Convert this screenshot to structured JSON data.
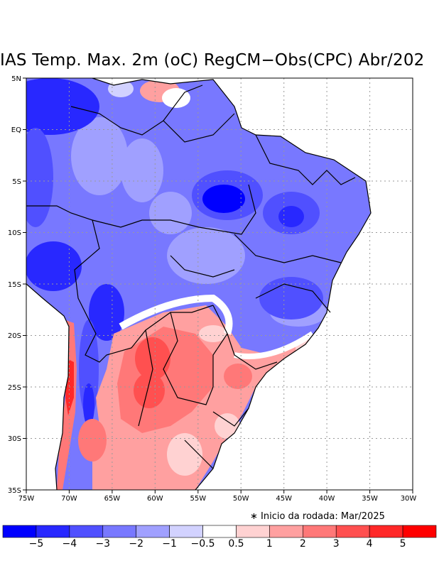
{
  "title": "IAS Temp. Max. 2m (oC) RegCM−Obs(CPC) Abr/202",
  "note": "∗ Inicio da rodada: Mar/2025",
  "lat_labels": [
    "5N",
    "EQ",
    "5S",
    "10S",
    "15S",
    "20S",
    "25S",
    "30S",
    "35S"
  ],
  "lon_labels": [
    "75W",
    "70W",
    "65W",
    "60W",
    "55W",
    "50W",
    "45W",
    "40W",
    "35W",
    "30W"
  ],
  "colorbar": {
    "colors": [
      "#0000ff",
      "#2828ff",
      "#5050ff",
      "#7878ff",
      "#a0a0ff",
      "#d2d2ff",
      "#ffffff",
      "#ffd2d2",
      "#ffa0a0",
      "#ff7878",
      "#ff5050",
      "#ff2828",
      "#ff0000"
    ],
    "labels": [
      "−5",
      "−4",
      "−3",
      "−2",
      "−1",
      "−0.5",
      "0.5",
      "1",
      "2",
      "3",
      "4",
      "5"
    ]
  },
  "colors": {
    "land_line": "#000000",
    "grid": "#9a9a9a"
  }
}
